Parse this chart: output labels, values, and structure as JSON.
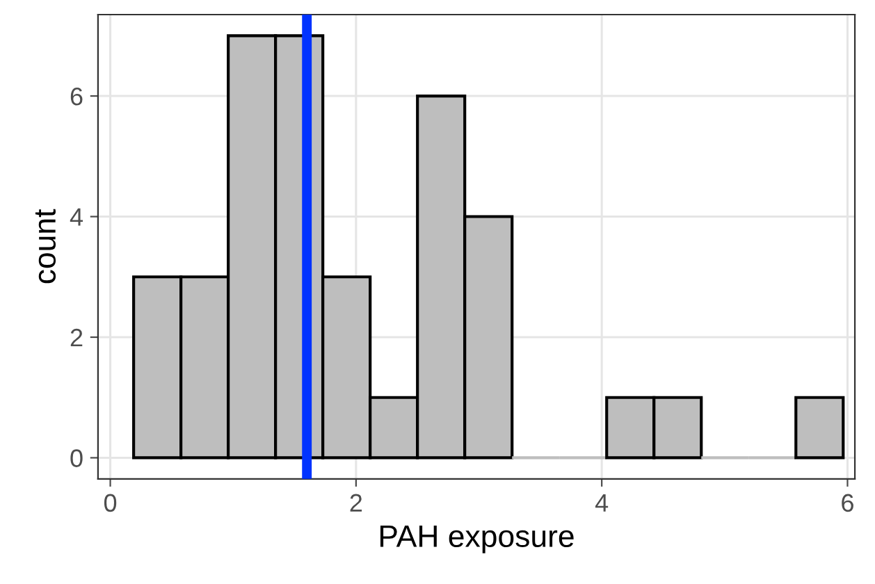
{
  "chart_data": {
    "type": "histogram",
    "xlabel": "PAH exposure",
    "ylabel": "count",
    "bins": [
      0.19,
      0.575,
      0.96,
      1.345,
      1.73,
      2.115,
      2.5,
      2.885,
      3.27,
      3.655,
      4.04,
      4.425,
      4.81,
      5.195,
      5.58,
      5.965
    ],
    "values": [
      3,
      3,
      7,
      7,
      3,
      1,
      6,
      4,
      0,
      0,
      1,
      1,
      0,
      0,
      1
    ],
    "color": "#bebebe",
    "xlim": [
      -0.1,
      6.06
    ],
    "ylim": [
      -0.35,
      7.35
    ],
    "xticks": [
      0,
      2,
      4,
      6
    ],
    "yticks": [
      0,
      2,
      4,
      6
    ],
    "ref_lines": [
      {
        "axis": "x",
        "value": 1.6,
        "color": "#0033ff"
      }
    ],
    "grid": true
  }
}
